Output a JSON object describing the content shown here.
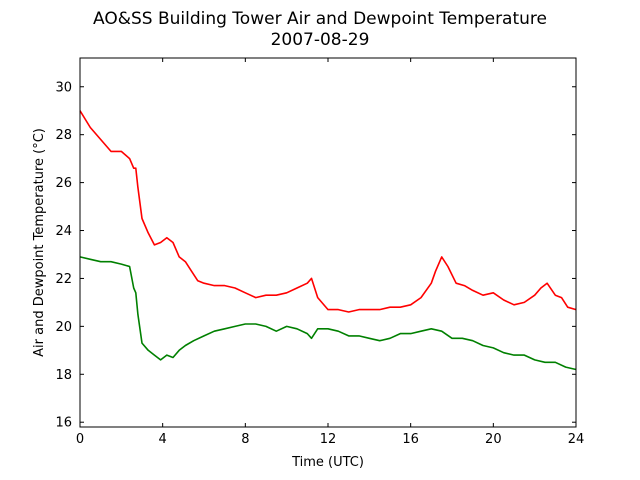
{
  "chart_data": {
    "type": "line",
    "title": "AO&SS Building Tower Air and Dewpoint Temperature",
    "subtitle": "2007-08-29",
    "xlabel": "Time (UTC)",
    "ylabel": "Air and Dewpoint Temperature (°C)",
    "xlim": [
      0,
      24
    ],
    "ylim": [
      15.8,
      31.2
    ],
    "xticks": [
      0,
      4,
      8,
      12,
      16,
      20,
      24
    ],
    "yticks": [
      16,
      18,
      20,
      22,
      24,
      26,
      28,
      30
    ],
    "grid": false,
    "series": [
      {
        "color": "#ff0000",
        "x": [
          0,
          0.5,
          1,
          1.5,
          2,
          2.4,
          2.6,
          2.7,
          2.8,
          3,
          3.3,
          3.6,
          3.9,
          4.2,
          4.5,
          4.8,
          5.1,
          5.4,
          5.7,
          6,
          6.5,
          7,
          7.5,
          8,
          8.5,
          9,
          9.5,
          10,
          10.5,
          11,
          11.2,
          11.5,
          12,
          12.5,
          13,
          13.5,
          14,
          14.5,
          15,
          15.5,
          16,
          16.5,
          17,
          17.2,
          17.5,
          17.8,
          18.2,
          18.6,
          19,
          19.5,
          20,
          20.5,
          21,
          21.5,
          22,
          22.3,
          22.6,
          23,
          23.3,
          23.6,
          24
        ],
        "values": [
          29.0,
          28.3,
          27.8,
          27.3,
          27.3,
          27.0,
          26.6,
          26.6,
          25.8,
          24.5,
          23.9,
          23.4,
          23.5,
          23.7,
          23.5,
          22.9,
          22.7,
          22.3,
          21.9,
          21.8,
          21.7,
          21.7,
          21.6,
          21.4,
          21.2,
          21.3,
          21.3,
          21.4,
          21.6,
          21.8,
          22.0,
          21.2,
          20.7,
          20.7,
          20.6,
          20.7,
          20.7,
          20.7,
          20.8,
          20.8,
          20.9,
          21.2,
          21.8,
          22.3,
          22.9,
          22.5,
          21.8,
          21.7,
          21.5,
          21.3,
          21.4,
          21.1,
          20.9,
          21.0,
          21.3,
          21.6,
          21.8,
          21.3,
          21.2,
          20.8,
          20.7
        ]
      },
      {
        "color": "#008000",
        "x": [
          0,
          0.5,
          1,
          1.5,
          2,
          2.4,
          2.6,
          2.7,
          2.8,
          3,
          3.3,
          3.6,
          3.9,
          4.2,
          4.5,
          4.8,
          5.1,
          5.5,
          6,
          6.5,
          7,
          7.5,
          8,
          8.5,
          9,
          9.5,
          10,
          10.5,
          11,
          11.2,
          11.5,
          12,
          12.5,
          13,
          13.5,
          14,
          14.5,
          15,
          15.5,
          16,
          16.5,
          17,
          17.5,
          18,
          18.5,
          19,
          19.5,
          20,
          20.5,
          21,
          21.5,
          22,
          22.5,
          23,
          23.5,
          24
        ],
        "values": [
          22.9,
          22.8,
          22.7,
          22.7,
          22.6,
          22.5,
          21.6,
          21.4,
          20.5,
          19.3,
          19.0,
          18.8,
          18.6,
          18.8,
          18.7,
          19.0,
          19.2,
          19.4,
          19.6,
          19.8,
          19.9,
          20.0,
          20.1,
          20.1,
          20.0,
          19.8,
          20.0,
          19.9,
          19.7,
          19.5,
          19.9,
          19.9,
          19.8,
          19.6,
          19.6,
          19.5,
          19.4,
          19.5,
          19.7,
          19.7,
          19.8,
          19.9,
          19.8,
          19.5,
          19.5,
          19.4,
          19.2,
          19.1,
          18.9,
          18.8,
          18.8,
          18.6,
          18.5,
          18.5,
          18.3,
          18.2
        ]
      }
    ]
  }
}
